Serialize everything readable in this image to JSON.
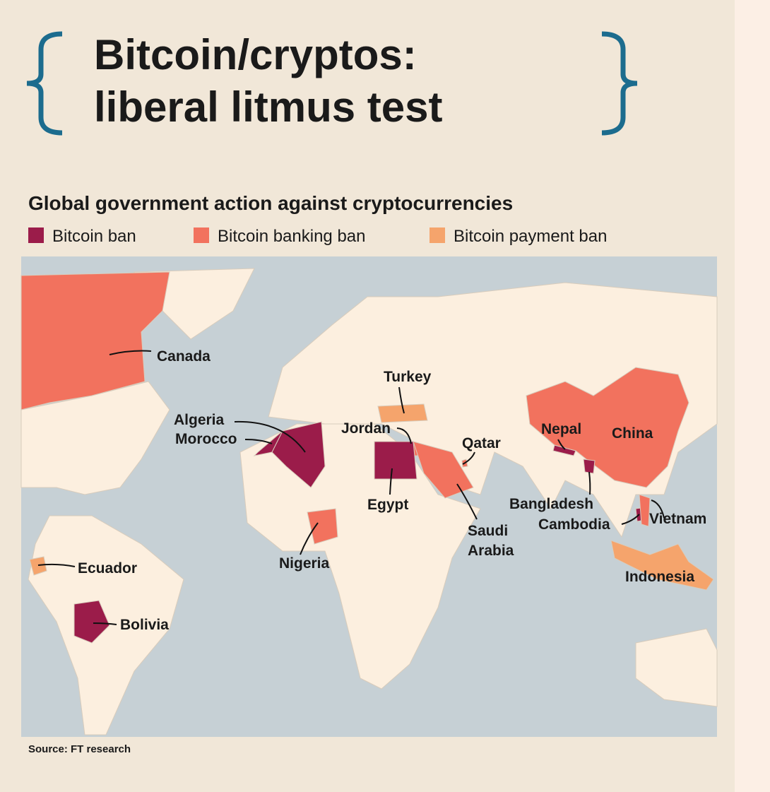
{
  "header": {
    "title_lines": [
      "Bitcoin/cryptos:",
      "liberal litmus test"
    ]
  },
  "map": {
    "title": "Global government action against cryptocurrencies",
    "legend": [
      {
        "name": "Bitcoin ban",
        "color": "#9b1c4a"
      },
      {
        "name": "Bitcoin banking ban",
        "color": "#f2725e"
      },
      {
        "name": "Bitcoin payment ban",
        "color": "#f5a46c"
      }
    ],
    "countries": [
      {
        "lines": [
          "Canada"
        ],
        "legend": 1
      },
      {
        "lines": [
          "Turkey"
        ],
        "legend": 2
      },
      {
        "lines": [
          "Algeria"
        ],
        "legend": 0
      },
      {
        "lines": [
          "Morocco"
        ],
        "legend": 0
      },
      {
        "lines": [
          "Jordan"
        ],
        "legend": 1
      },
      {
        "lines": [
          "Qatar"
        ],
        "legend": 1
      },
      {
        "lines": [
          "Nepal"
        ],
        "legend": 0
      },
      {
        "lines": [
          "China"
        ],
        "legend": 1
      },
      {
        "lines": [
          "Egypt"
        ],
        "legend": 0
      },
      {
        "lines": [
          "Bangladesh"
        ],
        "legend": 0
      },
      {
        "lines": [
          "Cambodia"
        ],
        "legend": 0
      },
      {
        "lines": [
          "Vietnam"
        ],
        "legend": 1
      },
      {
        "lines": [
          "Saudi",
          "Arabia"
        ],
        "legend": 1
      },
      {
        "lines": [
          "Nigeria"
        ],
        "legend": 1
      },
      {
        "lines": [
          "Ecuador"
        ],
        "legend": 2
      },
      {
        "lines": [
          "Indonesia"
        ],
        "legend": 2
      },
      {
        "lines": [
          "Bolivia"
        ],
        "legend": 0
      }
    ]
  },
  "source": "Source: FT research"
}
